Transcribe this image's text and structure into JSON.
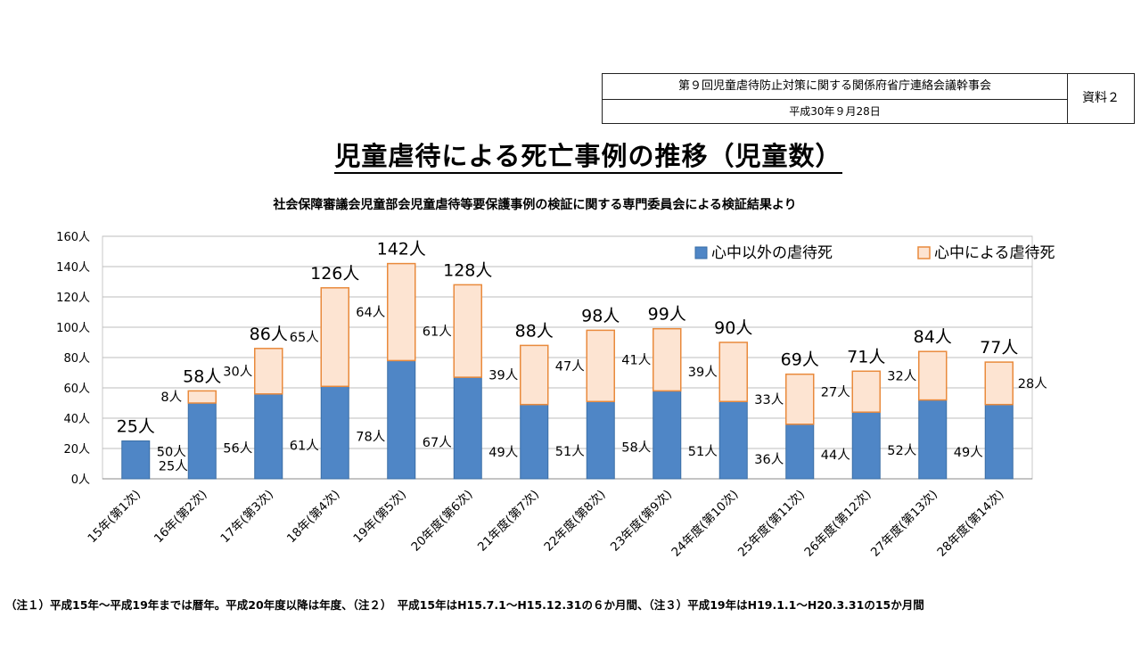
{
  "header": {
    "meeting": "第９回児童虐待防止対策に関する関係府省庁連絡会議幹事会",
    "date": "平成30年９月28日",
    "doc_label": "資料２"
  },
  "title": "児童虐待による死亡事例の推移（児童数）",
  "subtitle": "社会保障審議会児童部会児童虐待等要保護事例の検証に関する専門委員会による検証結果より",
  "footnote": "（注１）平成15年～平成19年までは暦年。平成20年度以降は年度、（注２）　平成15年はH15.7.1～H15.12.31の６か月間、（注３）平成19年はH19.1.1～H20.3.31の15か月間",
  "chart_data": {
    "type": "bar",
    "stacked": true,
    "categories": [
      "15年(第1次)",
      "16年(第2次)",
      "17年(第3次)",
      "18年(第4次)",
      "19年(第5次)",
      "20年度(第6次)",
      "21年度(第7次)",
      "22年度(第8次)",
      "23年度(第9次)",
      "24年度(第10次)",
      "25年度(第11次)",
      "26年度(第12次)",
      "27年度(第13次)",
      "28年度(第14次)"
    ],
    "series": [
      {
        "name": "心中以外の虐待死",
        "color": "#4f86c6",
        "stroke": "#3a6ea5",
        "values": [
          25,
          50,
          56,
          61,
          78,
          67,
          49,
          51,
          58,
          51,
          36,
          44,
          52,
          49
        ],
        "labels": [
          "25人",
          "50人",
          "56人",
          "61人",
          "78人",
          "67人",
          "49人",
          "51人",
          "58人",
          "51人",
          "36人",
          "44人",
          "52人",
          "49人"
        ]
      },
      {
        "name": "心中による虐待死",
        "color": "#fde4d2",
        "stroke": "#e98a3c",
        "values": [
          0,
          8,
          30,
          65,
          64,
          61,
          39,
          47,
          41,
          39,
          33,
          27,
          32,
          28
        ],
        "labels": [
          "",
          "8人",
          "30人",
          "65人",
          "64人",
          "61人",
          "39人",
          "47人",
          "41人",
          "39人",
          "33人",
          "27人",
          "32人",
          "28人"
        ]
      }
    ],
    "totals": [
      "25人",
      "58人",
      "86人",
      "126人",
      "142人",
      "128人",
      "88人",
      "98人",
      "99人",
      "90人",
      "69人",
      "71人",
      "84人",
      "77人"
    ],
    "ylim": [
      0,
      160
    ],
    "yticks": [
      "0人",
      "20人",
      "40人",
      "60人",
      "80人",
      "100人",
      "120人",
      "140人",
      "160人"
    ],
    "grid": true,
    "legend_position": "top-right"
  }
}
